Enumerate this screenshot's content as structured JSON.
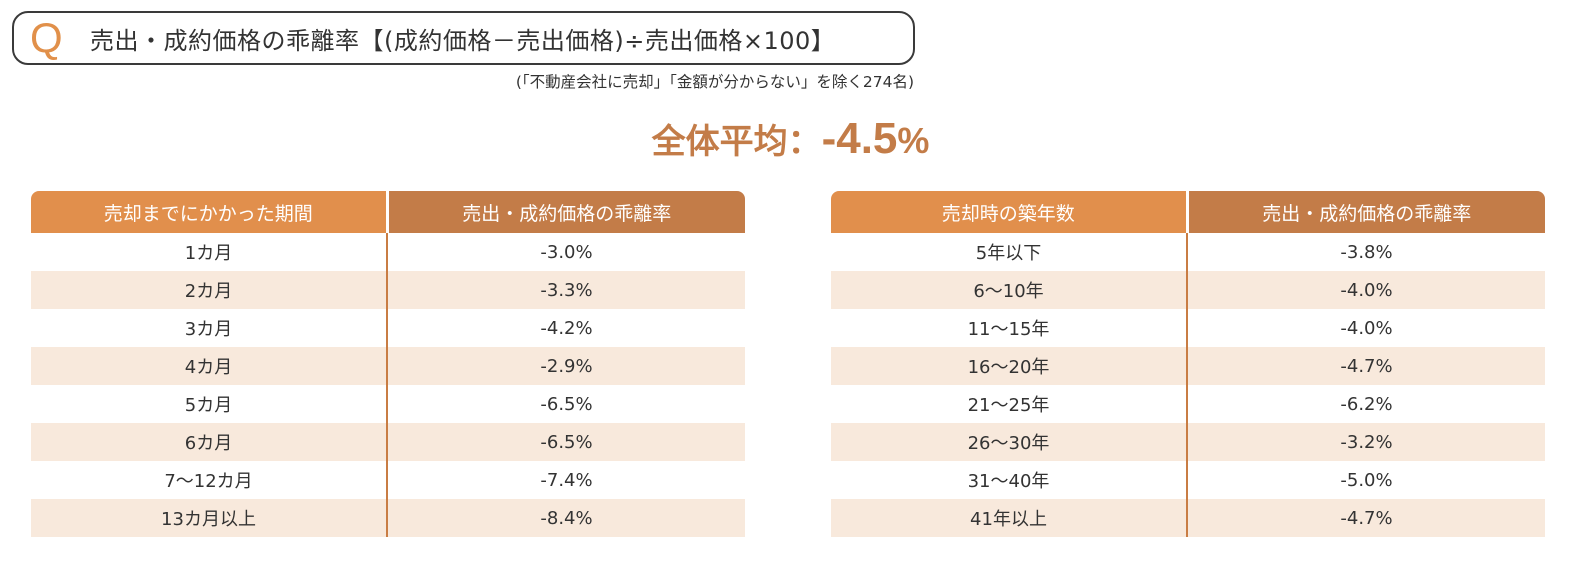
{
  "question": {
    "marker": "Q",
    "title": "売出・成約価格の乖離率【(成約価格－売出価格)÷売出価格×100】",
    "note": "(「不動産会社に売却」「金額が分からない」を除く274名)"
  },
  "overall_average": {
    "label": "全体平均：",
    "value": "-4.5",
    "unit": "%"
  },
  "colors": {
    "accent_light": "#e18f4c",
    "accent_dark": "#c37c48",
    "row_alt": "#f8e9dc",
    "divider": "#c97d44"
  },
  "tables": [
    {
      "headers": [
        "売却までにかかった期間",
        "売出・成約価格の乖離率"
      ],
      "rows": [
        [
          "1カ月",
          "-3.0%"
        ],
        [
          "2カ月",
          "-3.3%"
        ],
        [
          "3カ月",
          "-4.2%"
        ],
        [
          "4カ月",
          "-2.9%"
        ],
        [
          "5カ月",
          "-6.5%"
        ],
        [
          "6カ月",
          "-6.5%"
        ],
        [
          "7〜12カ月",
          "-7.4%"
        ],
        [
          "13カ月以上",
          "-8.4%"
        ]
      ]
    },
    {
      "headers": [
        "売却時の築年数",
        "売出・成約価格の乖離率"
      ],
      "rows": [
        [
          "5年以下",
          "-3.8%"
        ],
        [
          "6〜10年",
          "-4.0%"
        ],
        [
          "11〜15年",
          "-4.0%"
        ],
        [
          "16〜20年",
          "-4.7%"
        ],
        [
          "21〜25年",
          "-6.2%"
        ],
        [
          "26〜30年",
          "-3.2%"
        ],
        [
          "31〜40年",
          "-5.0%"
        ],
        [
          "41年以上",
          "-4.7%"
        ]
      ]
    }
  ],
  "chart_data": [
    {
      "type": "table",
      "title": "売出・成約価格の乖離率（売却までにかかった期間別）",
      "columns": [
        "売却までにかかった期間",
        "売出・成約価格の乖離率"
      ],
      "categories": [
        "1カ月",
        "2カ月",
        "3カ月",
        "4カ月",
        "5カ月",
        "6カ月",
        "7〜12カ月",
        "13カ月以上"
      ],
      "values": [
        -3.0,
        -3.3,
        -4.2,
        -2.9,
        -6.5,
        -6.5,
        -7.4,
        -8.4
      ],
      "unit": "%"
    },
    {
      "type": "table",
      "title": "売出・成約価格の乖離率（売却時の築年数別）",
      "columns": [
        "売却時の築年数",
        "売出・成約価格の乖離率"
      ],
      "categories": [
        "5年以下",
        "6〜10年",
        "11〜15年",
        "16〜20年",
        "21〜25年",
        "26〜30年",
        "31〜40年",
        "41年以上"
      ],
      "values": [
        -3.8,
        -4.0,
        -4.0,
        -4.7,
        -6.2,
        -3.2,
        -5.0,
        -4.7
      ],
      "unit": "%"
    }
  ]
}
